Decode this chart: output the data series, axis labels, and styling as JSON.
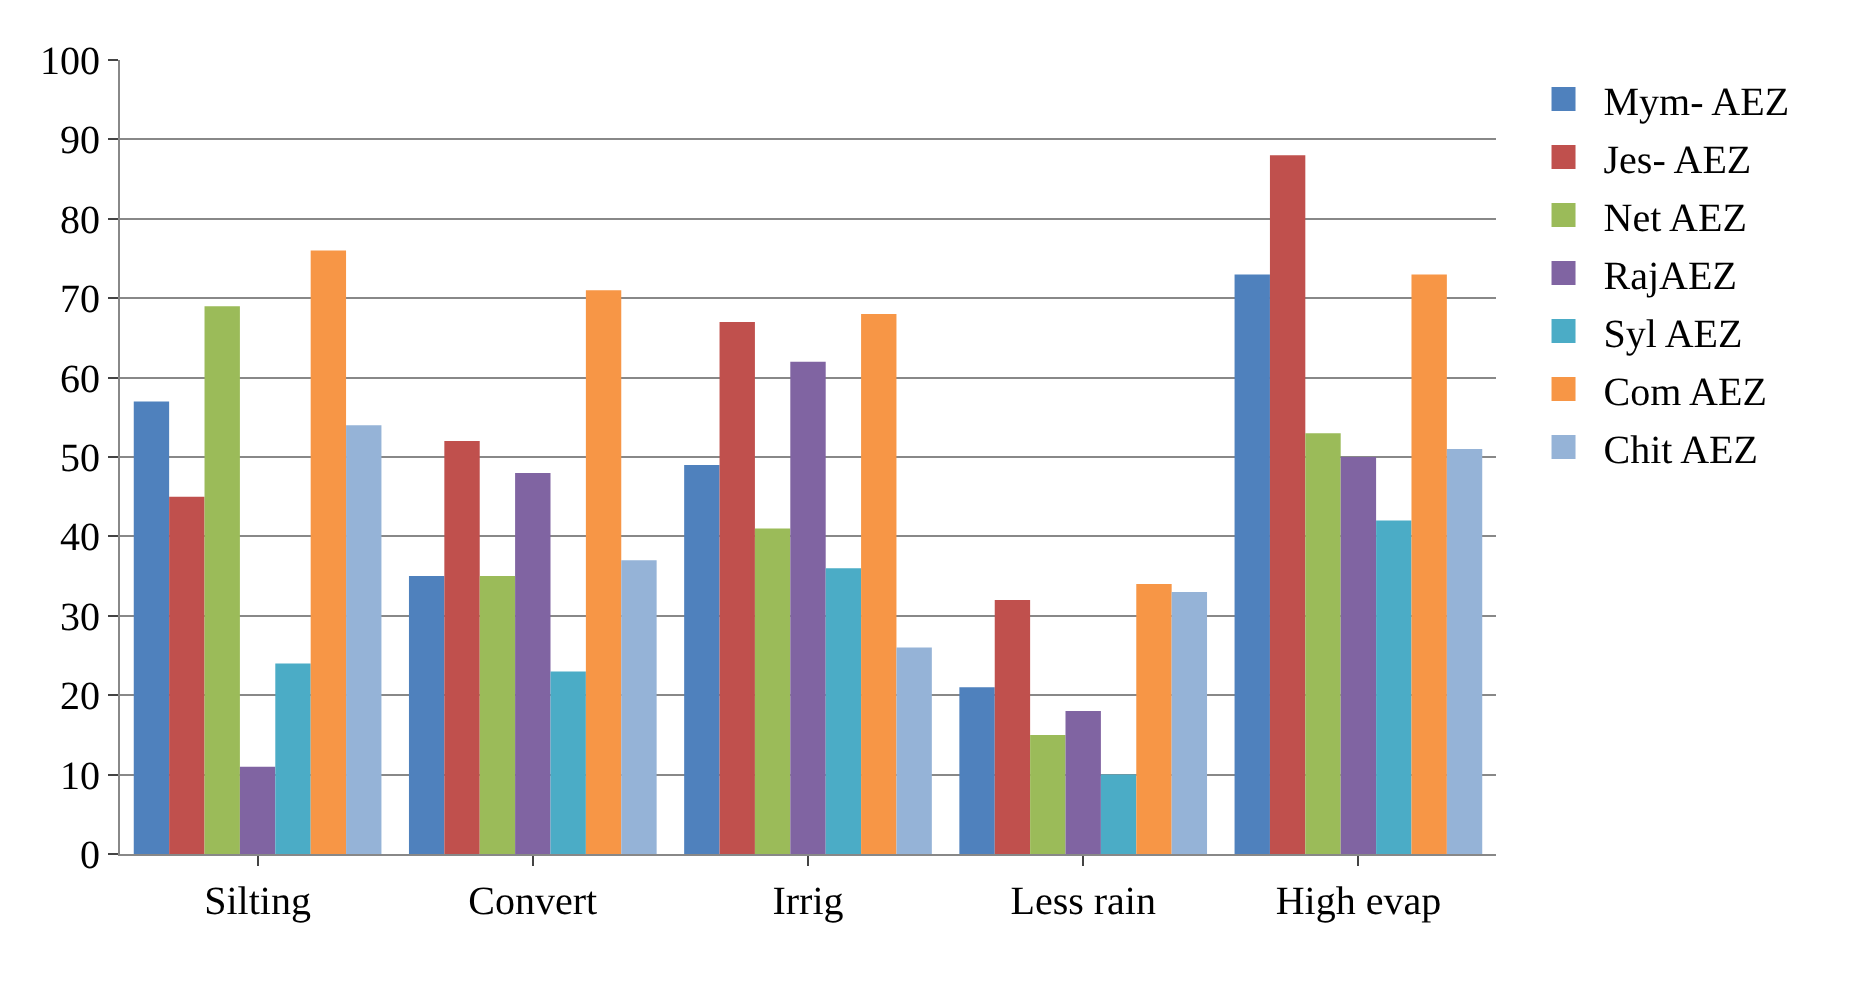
{
  "chart_data": {
    "type": "bar",
    "categories": [
      "Silting",
      "Convert",
      "Irrig",
      "Less rain",
      "High evap"
    ],
    "series": [
      {
        "name": "Mym- AEZ",
        "color": "#4f81bd",
        "values": [
          57,
          35,
          49,
          21,
          73
        ]
      },
      {
        "name": "Jes- AEZ",
        "color": "#c0504d",
        "values": [
          45,
          52,
          67,
          32,
          88
        ]
      },
      {
        "name": "Net AEZ",
        "color": "#9bbb59",
        "values": [
          69,
          35,
          41,
          15,
          53
        ]
      },
      {
        "name": "RajAEZ",
        "color": "#8064a2",
        "values": [
          11,
          48,
          62,
          18,
          50
        ]
      },
      {
        "name": "Syl AEZ",
        "color": "#4bacc6",
        "values": [
          24,
          23,
          36,
          10,
          42
        ]
      },
      {
        "name": "Com AEZ",
        "color": "#f79646",
        "values": [
          76,
          71,
          68,
          34,
          73
        ]
      },
      {
        "name": "Chit AEZ",
        "color": "#95b3d7",
        "values": [
          54,
          37,
          26,
          33,
          51
        ]
      }
    ],
    "ylim": [
      0,
      100
    ],
    "yticks": [
      0,
      10,
      20,
      30,
      40,
      50,
      60,
      70,
      80,
      90,
      100
    ],
    "grid": "y",
    "legend": "right"
  }
}
